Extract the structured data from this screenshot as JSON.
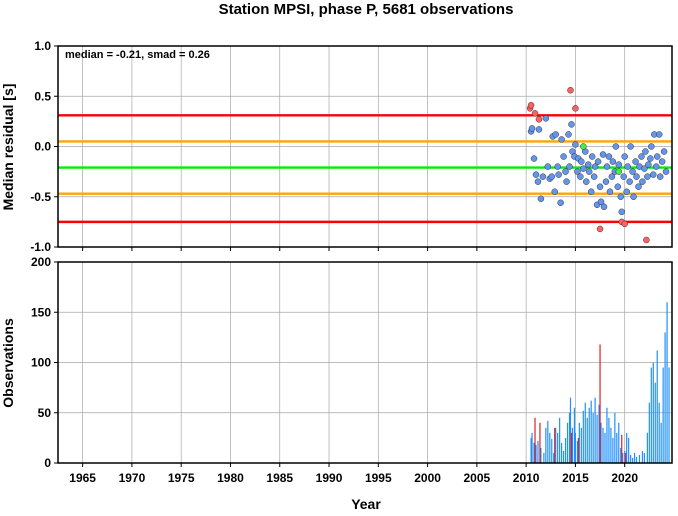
{
  "chart_data": [
    {
      "type": "scatter",
      "title": "Station MPSI, phase P, 5681 observations",
      "xlabel": "",
      "ylabel": "Median residual [s]",
      "annotation": "median = -0.21, smad = 0.26",
      "xlim": [
        1962.5,
        2024.8
      ],
      "ylim": [
        -1.0,
        1.0
      ],
      "xticks": [
        1965,
        1970,
        1975,
        1980,
        1985,
        1990,
        1995,
        2000,
        2005,
        2010,
        2015,
        2020
      ],
      "yticks": [
        1.0,
        0.5,
        0.0,
        -0.5,
        -1.0
      ],
      "ytick_labels": [
        "1.0",
        "0.5",
        "0.0",
        "-0.5",
        "-1.0"
      ],
      "grid": true,
      "reference_lines": [
        {
          "y": 0.31,
          "color": "#ff0000"
        },
        {
          "y": 0.05,
          "color": "#ffa500"
        },
        {
          "y": -0.21,
          "color": "#00ee00"
        },
        {
          "y": -0.47,
          "color": "#ffa500"
        },
        {
          "y": -0.75,
          "color": "#ff0000"
        }
      ],
      "series": [
        {
          "color": "#6495ed",
          "points": [
            [
              2010.5,
              0.15
            ],
            [
              2010.6,
              0.18
            ],
            [
              2010.8,
              -0.12
            ],
            [
              2011.0,
              -0.28
            ],
            [
              2011.2,
              -0.35
            ],
            [
              2011.3,
              0.17
            ],
            [
              2011.5,
              -0.52
            ],
            [
              2011.7,
              -0.3
            ],
            [
              2012.0,
              0.28
            ],
            [
              2012.2,
              -0.2
            ],
            [
              2012.4,
              -0.32
            ],
            [
              2012.6,
              -0.3
            ],
            [
              2012.7,
              0.1
            ],
            [
              2012.9,
              -0.45
            ],
            [
              2013.0,
              0.12
            ],
            [
              2013.2,
              -0.2
            ],
            [
              2013.3,
              -0.28
            ],
            [
              2013.5,
              -0.56
            ],
            [
              2013.6,
              0.07
            ],
            [
              2013.8,
              -0.1
            ],
            [
              2014.0,
              -0.25
            ],
            [
              2014.1,
              -0.35
            ],
            [
              2014.3,
              0.12
            ],
            [
              2014.4,
              -0.2
            ],
            [
              2014.6,
              0.22
            ],
            [
              2014.7,
              -0.05
            ],
            [
              2014.9,
              -0.1
            ],
            [
              2015.0,
              0.02
            ],
            [
              2015.2,
              -0.25
            ],
            [
              2015.3,
              -0.12
            ],
            [
              2015.5,
              -0.3
            ],
            [
              2015.6,
              -0.15
            ],
            [
              2015.8,
              -0.22
            ],
            [
              2016.0,
              -0.05
            ],
            [
              2016.1,
              -0.35
            ],
            [
              2016.3,
              -0.18
            ],
            [
              2016.4,
              -0.25
            ],
            [
              2016.6,
              -0.45
            ],
            [
              2016.7,
              -0.1
            ],
            [
              2016.9,
              -0.3
            ],
            [
              2017.0,
              -0.2
            ],
            [
              2017.2,
              -0.58
            ],
            [
              2017.3,
              -0.15
            ],
            [
              2017.5,
              -0.4
            ],
            [
              2017.6,
              -0.55
            ],
            [
              2017.8,
              -0.08
            ],
            [
              2017.9,
              -0.6
            ],
            [
              2018.1,
              -0.35
            ],
            [
              2018.2,
              -0.2
            ],
            [
              2018.4,
              -0.1
            ],
            [
              2018.5,
              -0.45
            ],
            [
              2018.7,
              -0.3
            ],
            [
              2018.8,
              -0.15
            ],
            [
              2019.0,
              -0.25
            ],
            [
              2019.1,
              0.0
            ],
            [
              2019.3,
              -0.4
            ],
            [
              2019.4,
              -0.18
            ],
            [
              2019.6,
              -0.5
            ],
            [
              2019.7,
              -0.65
            ],
            [
              2019.9,
              -0.3
            ],
            [
              2020.0,
              -0.1
            ],
            [
              2020.2,
              -0.45
            ],
            [
              2020.3,
              -0.2
            ],
            [
              2020.5,
              -0.35
            ],
            [
              2020.6,
              0.0
            ],
            [
              2020.8,
              -0.25
            ],
            [
              2020.9,
              -0.5
            ],
            [
              2021.1,
              -0.15
            ],
            [
              2021.2,
              -0.3
            ],
            [
              2021.4,
              -0.4
            ],
            [
              2021.5,
              -0.2
            ],
            [
              2021.7,
              -0.1
            ],
            [
              2021.8,
              -0.35
            ],
            [
              2022.0,
              -0.22
            ],
            [
              2022.1,
              -0.05
            ],
            [
              2022.3,
              -0.3
            ],
            [
              2022.4,
              -0.18
            ],
            [
              2022.6,
              -0.12
            ],
            [
              2022.7,
              0.0
            ],
            [
              2022.9,
              -0.28
            ],
            [
              2023.0,
              0.12
            ],
            [
              2023.2,
              -0.2
            ],
            [
              2023.3,
              -0.1
            ],
            [
              2023.5,
              0.12
            ],
            [
              2023.6,
              -0.3
            ],
            [
              2023.8,
              -0.15
            ],
            [
              2024.0,
              -0.05
            ],
            [
              2024.2,
              -0.25
            ]
          ]
        },
        {
          "color": "#ff6060",
          "points": [
            [
              2010.4,
              0.38
            ],
            [
              2010.5,
              0.41
            ],
            [
              2010.9,
              0.33
            ],
            [
              2011.3,
              0.27
            ],
            [
              2014.5,
              0.56
            ],
            [
              2015.0,
              0.38
            ],
            [
              2017.5,
              -0.82
            ],
            [
              2019.7,
              -0.75
            ],
            [
              2020.0,
              -0.77
            ],
            [
              2022.2,
              -0.93
            ]
          ]
        },
        {
          "color": "#44ee44",
          "points": [
            [
              2019.4,
              -0.25
            ],
            [
              2015.8,
              0.0
            ]
          ]
        }
      ]
    },
    {
      "type": "bar",
      "title": "",
      "xlabel": "Year",
      "ylabel": "Observations",
      "xlim": [
        1962.5,
        2024.8
      ],
      "ylim": [
        0,
        200
      ],
      "xticks": [
        1965,
        1970,
        1975,
        1980,
        1985,
        1990,
        1995,
        2000,
        2005,
        2010,
        2015,
        2020
      ],
      "yticks": [
        200,
        150,
        100,
        50,
        0
      ],
      "ytick_labels": [
        "200",
        "150",
        "100",
        "50",
        "0"
      ],
      "grid": true,
      "series": [
        {
          "color": "#1e90ff",
          "bars": [
            [
              2010.5,
              25
            ],
            [
              2010.6,
              30
            ],
            [
              2010.8,
              20
            ],
            [
              2011.0,
              18
            ],
            [
              2011.2,
              22
            ],
            [
              2011.5,
              15
            ],
            [
              2011.8,
              10
            ],
            [
              2012.0,
              35
            ],
            [
              2012.2,
              42
            ],
            [
              2012.4,
              30
            ],
            [
              2012.6,
              24
            ],
            [
              2012.8,
              10
            ],
            [
              2013.0,
              35
            ],
            [
              2013.2,
              30
            ],
            [
              2013.4,
              45
            ],
            [
              2013.6,
              20
            ],
            [
              2013.8,
              12
            ],
            [
              2014.0,
              25
            ],
            [
              2014.2,
              40
            ],
            [
              2014.4,
              50
            ],
            [
              2014.5,
              65
            ],
            [
              2014.7,
              35
            ],
            [
              2014.9,
              55
            ],
            [
              2015.0,
              30
            ],
            [
              2015.2,
              22
            ],
            [
              2015.4,
              40
            ],
            [
              2015.6,
              35
            ],
            [
              2015.8,
              52
            ],
            [
              2016.0,
              60
            ],
            [
              2016.2,
              45
            ],
            [
              2016.4,
              55
            ],
            [
              2016.6,
              62
            ],
            [
              2016.8,
              50
            ],
            [
              2017.0,
              65
            ],
            [
              2017.2,
              48
            ],
            [
              2017.4,
              58
            ],
            [
              2017.6,
              40
            ],
            [
              2017.8,
              35
            ],
            [
              2018.0,
              30
            ],
            [
              2018.2,
              55
            ],
            [
              2018.4,
              45
            ],
            [
              2018.6,
              35
            ],
            [
              2018.8,
              25
            ],
            [
              2019.0,
              50
            ],
            [
              2019.2,
              30
            ],
            [
              2019.4,
              40
            ],
            [
              2019.6,
              15
            ],
            [
              2019.8,
              10
            ],
            [
              2020.0,
              12
            ],
            [
              2020.2,
              30
            ],
            [
              2020.4,
              25
            ],
            [
              2020.6,
              8
            ],
            [
              2020.8,
              5
            ],
            [
              2021.0,
              10
            ],
            [
              2021.2,
              6
            ],
            [
              2021.5,
              8
            ],
            [
              2021.8,
              12
            ],
            [
              2022.0,
              10
            ],
            [
              2022.3,
              30
            ],
            [
              2022.5,
              60
            ],
            [
              2022.7,
              95
            ],
            [
              2022.9,
              100
            ],
            [
              2023.1,
              80
            ],
            [
              2023.3,
              112
            ],
            [
              2023.5,
              60
            ],
            [
              2023.7,
              40
            ],
            [
              2023.9,
              95
            ],
            [
              2024.1,
              130
            ],
            [
              2024.3,
              160
            ],
            [
              2024.5,
              95
            ]
          ]
        },
        {
          "color": "#dd2222",
          "bars": [
            [
              2010.9,
              45
            ],
            [
              2011.4,
              40
            ],
            [
              2012.9,
              35
            ],
            [
              2014.6,
              30
            ],
            [
              2015.3,
              25
            ],
            [
              2017.5,
              118
            ],
            [
              2019.7,
              28
            ],
            [
              2020.1,
              10
            ]
          ]
        }
      ]
    }
  ]
}
